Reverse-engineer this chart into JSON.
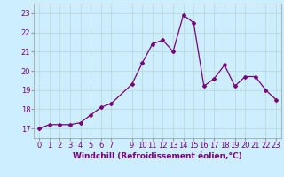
{
  "x": [
    0,
    1,
    2,
    3,
    4,
    5,
    6,
    7,
    9,
    10,
    11,
    12,
    13,
    14,
    15,
    16,
    17,
    18,
    19,
    20,
    21,
    22,
    23
  ],
  "y": [
    17.0,
    17.2,
    17.2,
    17.2,
    17.3,
    17.7,
    18.1,
    18.3,
    19.3,
    20.4,
    21.4,
    21.6,
    21.0,
    22.9,
    22.5,
    19.2,
    19.6,
    20.3,
    19.2,
    19.7,
    19.7,
    19.0,
    18.5
  ],
  "line_color": "#7B007B",
  "marker": "D",
  "markersize": 2.0,
  "linewidth": 0.9,
  "bg_color": "#cceeff",
  "grid_color": "#bbdddd",
  "xlabel": "Windchill (Refroidissement éolien,°C)",
  "xlabel_fontsize": 6.5,
  "tick_fontsize": 6,
  "ylim": [
    16.5,
    23.5
  ],
  "yticks": [
    17,
    18,
    19,
    20,
    21,
    22,
    23
  ],
  "xticks": [
    0,
    1,
    2,
    3,
    4,
    5,
    6,
    7,
    9,
    10,
    11,
    12,
    13,
    14,
    15,
    16,
    17,
    18,
    19,
    20,
    21,
    22,
    23
  ],
  "xlim": [
    -0.5,
    23.5
  ]
}
